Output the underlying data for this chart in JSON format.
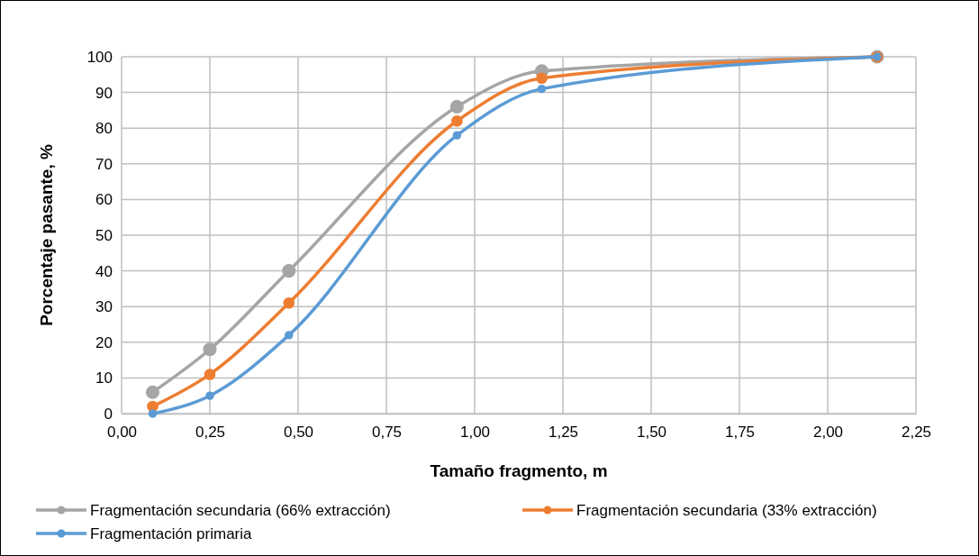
{
  "chart_data": {
    "type": "line",
    "xlabel": "Tamaño fragmento, m",
    "ylabel": "Porcentaje pasante, %",
    "x": [
      0.088,
      0.25,
      0.474,
      0.95,
      1.19,
      2.14
    ],
    "series": [
      {
        "name": "Fragmentación secundaria (66% extracción)",
        "color": "#a5a5a5",
        "values": [
          6,
          18,
          40,
          86,
          96,
          100
        ]
      },
      {
        "name": "Fragmentación secundaria (33% extracción)",
        "color": "#ed7d31",
        "values": [
          2,
          11,
          31,
          82,
          94,
          100
        ]
      },
      {
        "name": "Fragmentación primaria",
        "color": "#5b9bd5",
        "values": [
          0,
          5,
          22,
          78,
          91,
          100
        ]
      }
    ],
    "xlim": [
      0,
      2.25
    ],
    "xticks": [
      {
        "value": 0,
        "label": "0,00"
      },
      {
        "value": 0.25,
        "label": "0,25"
      },
      {
        "value": 0.5,
        "label": "0,50"
      },
      {
        "value": 0.75,
        "label": "0,75"
      },
      {
        "value": 1,
        "label": "1,00"
      },
      {
        "value": 1.25,
        "label": "1,25"
      },
      {
        "value": 1.5,
        "label": "1,50"
      },
      {
        "value": 1.75,
        "label": "1,75"
      },
      {
        "value": 2,
        "label": "2,00"
      },
      {
        "value": 2.25,
        "label": "2,25"
      }
    ],
    "ylim": [
      0,
      100
    ],
    "yticks": [
      0,
      10,
      20,
      30,
      40,
      50,
      60,
      70,
      80,
      90,
      100
    ],
    "grid": true,
    "legend": "bottom",
    "marker": "circle",
    "line_style": "solid"
  }
}
